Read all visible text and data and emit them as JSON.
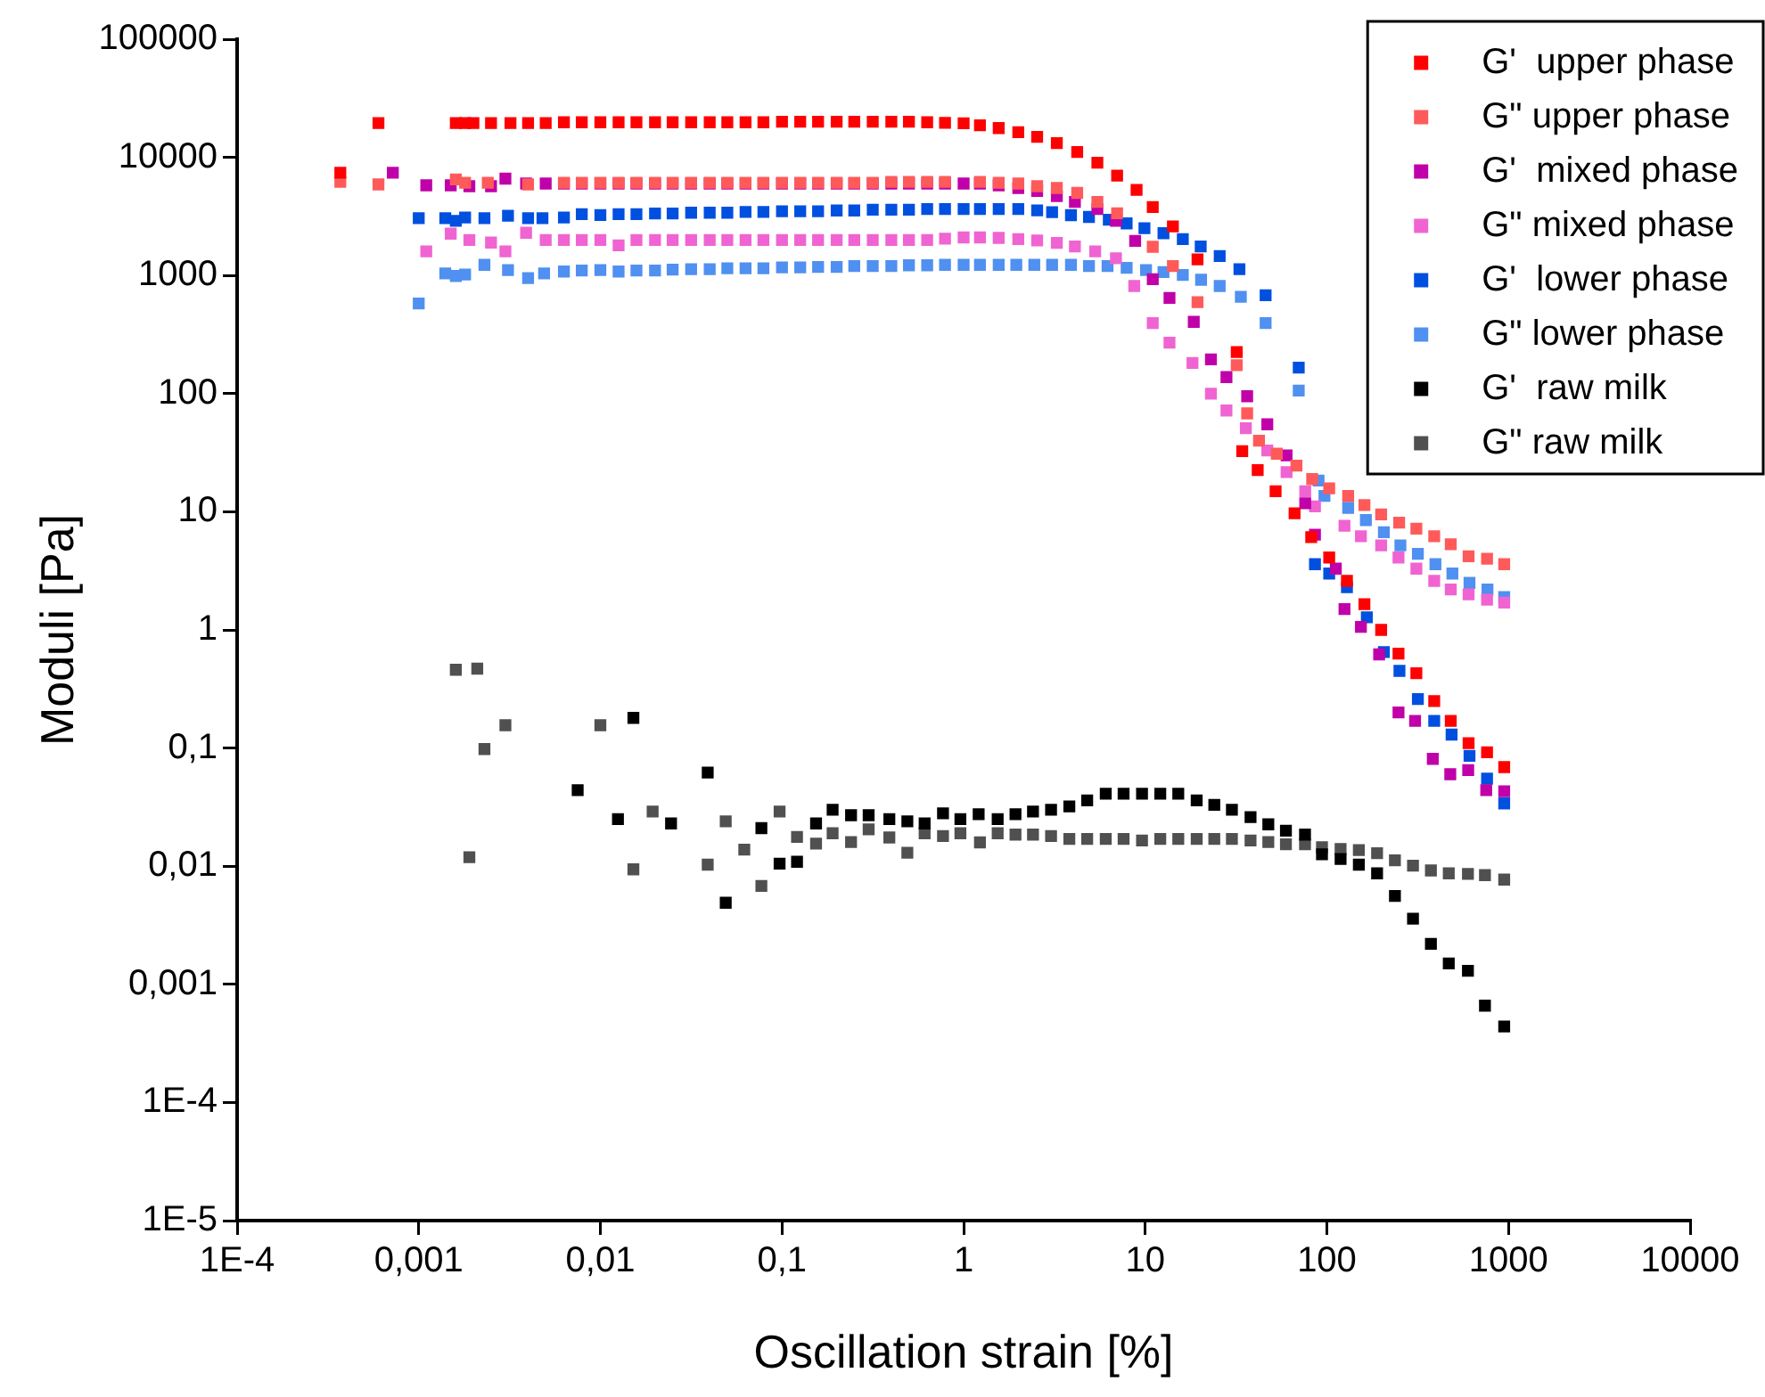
{
  "chart_data": {
    "type": "scatter",
    "xlabel": "Oscillation strain [%]",
    "ylabel": "Moduli [Pa]",
    "log": "xy",
    "grid": false,
    "legend": "top right",
    "marker": "square",
    "xlim": [
      0.0001,
      10000
    ],
    "xticks": [
      {
        "value": 0.0001,
        "label": "1E-4"
      },
      {
        "value": 0.001,
        "label": "0,001"
      },
      {
        "value": 0.01,
        "label": "0,01"
      },
      {
        "value": 0.1,
        "label": "0,1"
      },
      1,
      10,
      100,
      1000,
      10000
    ],
    "ylim": [
      1e-05,
      100000
    ],
    "yticks": [
      {
        "value": 1e-05,
        "label": "1E-5"
      },
      {
        "value": 0.0001,
        "label": "1E-4"
      },
      {
        "value": 0.001,
        "label": "0,001"
      },
      {
        "value": 0.01,
        "label": "0,01"
      },
      {
        "value": 0.1,
        "label": "0,1"
      },
      1,
      10,
      100,
      1000,
      10000,
      100000
    ],
    "series": [
      {
        "name": "G'  upper phase",
        "color": "#ff0000",
        "x": [
          0.00037,
          0.0006,
          0.0016,
          0.0018,
          0.002,
          0.0025,
          0.0032,
          0.004,
          0.005,
          0.0063,
          0.0079,
          0.01,
          0.0126,
          0.0158,
          0.02,
          0.025,
          0.0316,
          0.04,
          0.05,
          0.063,
          0.079,
          0.1,
          0.126,
          0.158,
          0.2,
          0.25,
          0.316,
          0.4,
          0.5,
          0.63,
          0.79,
          1,
          1.23,
          1.56,
          2,
          2.54,
          3.26,
          4.22,
          5.45,
          7,
          8.96,
          11,
          14.2,
          19.4,
          31.9,
          34.2,
          41.6,
          52.2,
          66.4,
          82,
          103,
          129,
          161,
          199,
          248,
          311,
          390,
          481,
          603,
          762,
          947
        ],
        "values": [
          7400,
          19500,
          19500,
          19500,
          19500,
          19500,
          19500,
          19500,
          19500,
          19800,
          19800,
          19800,
          19800,
          19800,
          19800,
          19800,
          19800,
          19800,
          19800,
          19800,
          19800,
          20000,
          20000,
          20000,
          20000,
          20000,
          20000,
          20000,
          20000,
          19800,
          19600,
          19400,
          18700,
          17700,
          16300,
          14900,
          13200,
          11100,
          9000,
          7000,
          5300,
          3800,
          2600,
          1370,
          225,
          32.6,
          22.5,
          14.9,
          9.7,
          6.1,
          4.1,
          2.6,
          1.65,
          1.0,
          0.63,
          0.43,
          0.25,
          0.17,
          0.11,
          0.092,
          0.069
        ]
      },
      {
        "name": "G\" upper phase",
        "color": "#ff5a5a",
        "x": [
          0.00037,
          0.0006,
          0.0016,
          0.0018,
          0.0024,
          0.004,
          0.0063,
          0.0079,
          0.01,
          0.0126,
          0.0158,
          0.02,
          0.025,
          0.0316,
          0.04,
          0.05,
          0.063,
          0.079,
          0.1,
          0.126,
          0.158,
          0.2,
          0.25,
          0.316,
          0.4,
          0.5,
          0.63,
          0.79,
          1.23,
          1.56,
          2,
          2.54,
          3.26,
          4.22,
          5.45,
          7,
          11,
          14.2,
          19.4,
          31.9,
          36.4,
          42.3,
          53,
          68,
          83,
          103,
          131,
          161,
          199,
          250,
          311,
          390,
          481,
          603,
          762,
          947
        ],
        "values": [
          6200,
          5900,
          6500,
          6100,
          6100,
          5900,
          6100,
          6100,
          6100,
          6100,
          6100,
          6100,
          6100,
          6100,
          6100,
          6100,
          6100,
          6100,
          6100,
          6100,
          6100,
          6100,
          6100,
          6100,
          6200,
          6200,
          6200,
          6200,
          6200,
          6100,
          6000,
          5700,
          5500,
          5000,
          4200,
          3360,
          1750,
          1200,
          595,
          174,
          68,
          40,
          31,
          24.6,
          18.9,
          15.8,
          13.6,
          11.4,
          9.5,
          8.1,
          7.2,
          6.2,
          5.3,
          4.2,
          4.0,
          3.6
        ]
      },
      {
        "name": "G'  mixed phase",
        "color": "#c000a8",
        "x": [
          0.00072,
          0.0011,
          0.0015,
          0.0019,
          0.0025,
          0.003,
          0.0039,
          0.005,
          0.0063,
          0.0079,
          0.01,
          0.0126,
          0.0158,
          0.02,
          0.025,
          0.0316,
          0.04,
          0.05,
          0.063,
          0.079,
          0.1,
          0.126,
          0.158,
          0.2,
          0.25,
          0.316,
          0.4,
          0.5,
          0.63,
          0.79,
          1,
          1.23,
          1.56,
          2,
          2.54,
          3.26,
          4.1,
          5.45,
          6.9,
          8.8,
          11,
          13.6,
          18.5,
          23,
          28,
          36.4,
          47,
          60,
          76,
          86,
          112,
          125,
          154,
          194,
          248,
          306,
          383,
          478,
          600,
          754,
          947
        ],
        "values": [
          7400,
          5800,
          5800,
          5700,
          5700,
          6600,
          6000,
          6000,
          6000,
          6000,
          6000,
          6000,
          6000,
          6000,
          6000,
          6000,
          6000,
          6000,
          6000,
          6000,
          6000,
          6000,
          6000,
          6000,
          6000,
          6000,
          6000,
          6000,
          6000,
          6000,
          6000,
          6000,
          5800,
          5500,
          5200,
          4700,
          4200,
          3650,
          2900,
          1960,
          930,
          645,
          405,
          195,
          138,
          95,
          55,
          30,
          11.8,
          6.4,
          3.3,
          1.5,
          1.06,
          0.62,
          0.2,
          0.17,
          0.081,
          0.06,
          0.065,
          0.044,
          0.043
        ]
      },
      {
        "name": "G\" mixed phase",
        "color": "#f064d2",
        "x": [
          0.0011,
          0.0015,
          0.0019,
          0.0025,
          0.003,
          0.0039,
          0.005,
          0.0063,
          0.0079,
          0.01,
          0.0126,
          0.0158,
          0.02,
          0.025,
          0.0316,
          0.04,
          0.05,
          0.063,
          0.079,
          0.1,
          0.126,
          0.158,
          0.2,
          0.25,
          0.316,
          0.4,
          0.5,
          0.63,
          0.79,
          1,
          1.23,
          1.56,
          2,
          2.54,
          3.26,
          4.1,
          5.3,
          6.9,
          8.7,
          11,
          13.6,
          18.2,
          23,
          28,
          35.8,
          47,
          60,
          76,
          86,
          125,
          154,
          199,
          248,
          311,
          390,
          481,
          603,
          762,
          947
        ],
        "values": [
          1600,
          2260,
          2000,
          1900,
          1600,
          2300,
          2000,
          2000,
          2000,
          2000,
          1800,
          2000,
          2000,
          2000,
          2000,
          2000,
          2000,
          2000,
          2000,
          2000,
          2000,
          2000,
          2000,
          2000,
          2000,
          2000,
          2000,
          2000,
          2050,
          2100,
          2100,
          2080,
          2030,
          1980,
          1890,
          1760,
          1600,
          1400,
          815,
          395,
          270,
          182,
          100,
          72,
          51,
          33,
          21.7,
          14.9,
          11.1,
          7.6,
          6.2,
          5.2,
          4.1,
          3.3,
          2.6,
          2.2,
          2.0,
          1.8,
          1.7
        ]
      },
      {
        "name": "G'  lower phase",
        "color": "#0050e0",
        "x": [
          0.001,
          0.0014,
          0.0016,
          0.0018,
          0.0023,
          0.0031,
          0.004,
          0.0048,
          0.0063,
          0.0079,
          0.01,
          0.0126,
          0.0158,
          0.02,
          0.025,
          0.0316,
          0.04,
          0.05,
          0.063,
          0.079,
          0.1,
          0.126,
          0.158,
          0.2,
          0.25,
          0.316,
          0.4,
          0.5,
          0.63,
          0.79,
          1,
          1.23,
          1.56,
          2,
          2.54,
          3.07,
          3.9,
          4.9,
          6.3,
          7.9,
          9.9,
          12.6,
          16.1,
          20.2,
          25.7,
          33,
          46,
          70,
          86,
          103,
          129,
          166,
          206,
          251,
          317,
          390,
          486,
          610,
          762,
          947
        ],
        "values": [
          3060,
          3060,
          2900,
          3100,
          3060,
          3200,
          3060,
          3060,
          3100,
          3300,
          3250,
          3300,
          3300,
          3350,
          3350,
          3400,
          3400,
          3400,
          3450,
          3450,
          3500,
          3500,
          3500,
          3550,
          3550,
          3600,
          3600,
          3600,
          3650,
          3650,
          3650,
          3650,
          3650,
          3650,
          3560,
          3440,
          3240,
          3130,
          2960,
          2760,
          2510,
          2280,
          2030,
          1760,
          1460,
          1130,
          680,
          166,
          3.6,
          3.0,
          2.3,
          1.28,
          0.65,
          0.45,
          0.26,
          0.17,
          0.13,
          0.086,
          0.055,
          0.034
        ]
      },
      {
        "name": "G\" lower phase",
        "color": "#5090f0",
        "x": [
          0.001,
          0.0014,
          0.0016,
          0.0018,
          0.0023,
          0.0031,
          0.004,
          0.0049,
          0.0063,
          0.0079,
          0.01,
          0.0126,
          0.0158,
          0.02,
          0.025,
          0.0316,
          0.04,
          0.05,
          0.063,
          0.079,
          0.1,
          0.126,
          0.158,
          0.2,
          0.25,
          0.316,
          0.4,
          0.5,
          0.63,
          0.79,
          1,
          1.23,
          1.56,
          1.95,
          2.45,
          3.07,
          3.9,
          4.9,
          6.2,
          7.9,
          10.1,
          12.6,
          16.1,
          20.3,
          25.7,
          33.6,
          46,
          70,
          90,
          97,
          131,
          164,
          206,
          254,
          317,
          396,
          491,
          610,
          766,
          947
        ],
        "values": [
          580,
          1040,
          990,
          1020,
          1230,
          1110,
          950,
          1040,
          1080,
          1100,
          1110,
          1080,
          1100,
          1100,
          1120,
          1130,
          1130,
          1150,
          1150,
          1150,
          1170,
          1170,
          1180,
          1180,
          1200,
          1200,
          1200,
          1220,
          1220,
          1230,
          1230,
          1230,
          1230,
          1230,
          1230,
          1230,
          1230,
          1200,
          1200,
          1160,
          1110,
          1070,
          1010,
          920,
          815,
          660,
          395,
          106,
          18.4,
          13.6,
          10.8,
          8.5,
          6.7,
          5.2,
          4.4,
          3.6,
          3.0,
          2.5,
          2.2,
          1.9
        ]
      },
      {
        "name": "G'  raw milk",
        "color": "#000000",
        "x": [
          0.0075,
          0.0125,
          0.0152,
          0.0245,
          0.039,
          0.049,
          0.077,
          0.097,
          0.121,
          0.154,
          0.19,
          0.24,
          0.3,
          0.39,
          0.49,
          0.61,
          0.77,
          0.96,
          1.21,
          1.54,
          1.93,
          2.41,
          3.03,
          3.82,
          4.79,
          6.06,
          7.6,
          9.6,
          12.1,
          15.2,
          19.2,
          24,
          30,
          38,
          47.6,
          59.5,
          75.8,
          94,
          119,
          150,
          189,
          237,
          298,
          374,
          469,
          598,
          742,
          947
        ],
        "values": [
          0.044,
          0.025,
          0.18,
          0.023,
          0.062,
          0.0049,
          0.021,
          0.0105,
          0.0109,
          0.023,
          0.03,
          0.027,
          0.027,
          0.025,
          0.024,
          0.023,
          0.028,
          0.025,
          0.0275,
          0.025,
          0.0275,
          0.029,
          0.03,
          0.032,
          0.036,
          0.041,
          0.041,
          0.041,
          0.041,
          0.041,
          0.036,
          0.033,
          0.03,
          0.026,
          0.0226,
          0.02,
          0.0185,
          0.0126,
          0.0115,
          0.0103,
          0.0087,
          0.0056,
          0.0036,
          0.0022,
          0.0015,
          0.0013,
          0.00066,
          0.00044
        ]
      },
      {
        "name": "G\" raw milk",
        "color": "#505050",
        "x": [
          0.0016,
          0.0019,
          0.0021,
          0.0023,
          0.003,
          0.01,
          0.0152,
          0.0194,
          0.039,
          0.049,
          0.062,
          0.077,
          0.097,
          0.121,
          0.154,
          0.19,
          0.24,
          0.3,
          0.39,
          0.49,
          0.61,
          0.77,
          0.96,
          1.23,
          1.54,
          1.93,
          2.41,
          3.03,
          3.82,
          4.79,
          6.06,
          7.6,
          9.6,
          12.1,
          15.2,
          19.2,
          24,
          30,
          38,
          47.6,
          59.5,
          75.8,
          94,
          119,
          150,
          189,
          237,
          298,
          374,
          469,
          598,
          742,
          947
        ],
        "values": [
          0.46,
          0.0119,
          0.47,
          0.098,
          0.156,
          0.156,
          0.0094,
          0.029,
          0.0103,
          0.024,
          0.0138,
          0.0068,
          0.029,
          0.0177,
          0.0155,
          0.019,
          0.016,
          0.0205,
          0.0175,
          0.013,
          0.019,
          0.018,
          0.019,
          0.0159,
          0.019,
          0.0185,
          0.0185,
          0.018,
          0.017,
          0.017,
          0.017,
          0.017,
          0.0165,
          0.017,
          0.017,
          0.017,
          0.017,
          0.017,
          0.0165,
          0.016,
          0.0153,
          0.0153,
          0.0145,
          0.014,
          0.0137,
          0.0129,
          0.0112,
          0.0101,
          0.0092,
          0.0087,
          0.0086,
          0.0084,
          0.0077
        ]
      }
    ]
  }
}
